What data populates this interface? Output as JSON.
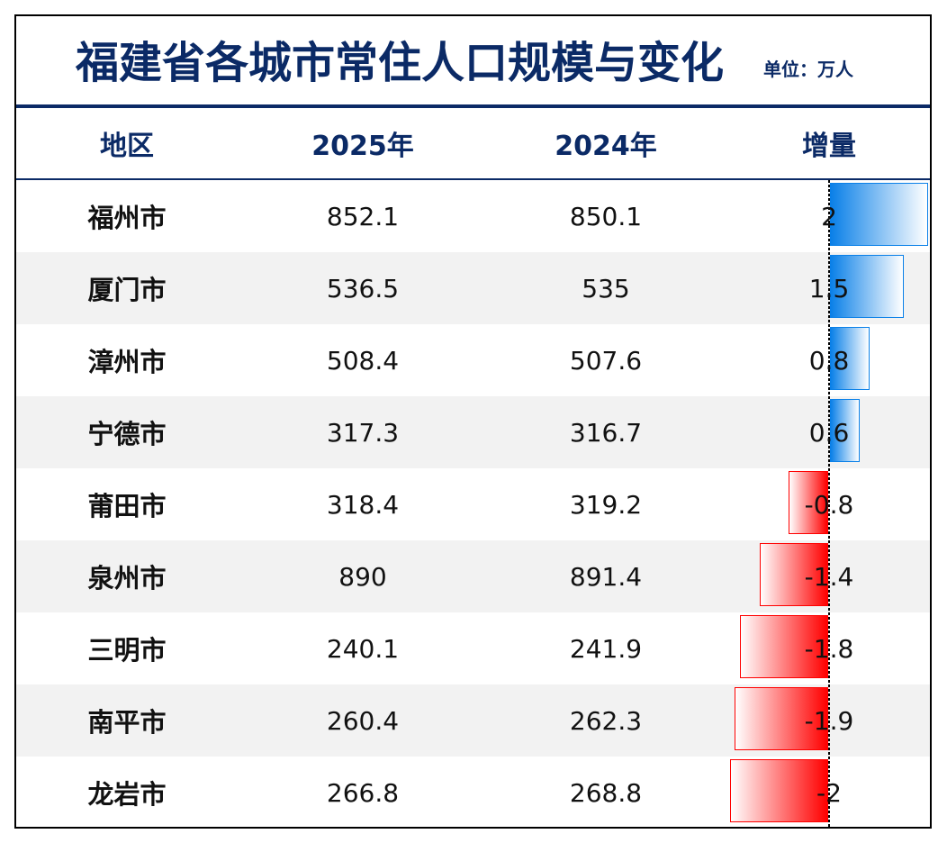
{
  "chart_data": {
    "type": "table",
    "title": "福建省各城市常住人口规模与变化",
    "unit": "单位：万人",
    "columns": [
      "地区",
      "2025年",
      "2024年",
      "增量"
    ],
    "rows": [
      {
        "region": "福州市",
        "y2025": 852.1,
        "y2024": 850.1,
        "change": 2
      },
      {
        "region": "厦门市",
        "y2025": 536.5,
        "y2024": 535,
        "change": 1.5
      },
      {
        "region": "漳州市",
        "y2025": 508.4,
        "y2024": 507.6,
        "change": 0.8
      },
      {
        "region": "宁德市",
        "y2025": 317.3,
        "y2024": 316.7,
        "change": 0.6
      },
      {
        "region": "莆田市",
        "y2025": 318.4,
        "y2024": 319.2,
        "change": -0.8
      },
      {
        "region": "泉州市",
        "y2025": 890,
        "y2024": 891.4,
        "change": -1.4
      },
      {
        "region": "三明市",
        "y2025": 240.1,
        "y2024": 241.9,
        "change": -1.8
      },
      {
        "region": "南平市",
        "y2025": 260.4,
        "y2024": 262.3,
        "change": -1.9
      },
      {
        "region": "龙岩市",
        "y2025": 266.8,
        "y2024": 268.8,
        "change": -2
      }
    ],
    "colors": {
      "title": "#0b2a66",
      "positive": "#0a80e8",
      "negative": "#ff0000",
      "stripe": "#f2f2f2"
    }
  }
}
